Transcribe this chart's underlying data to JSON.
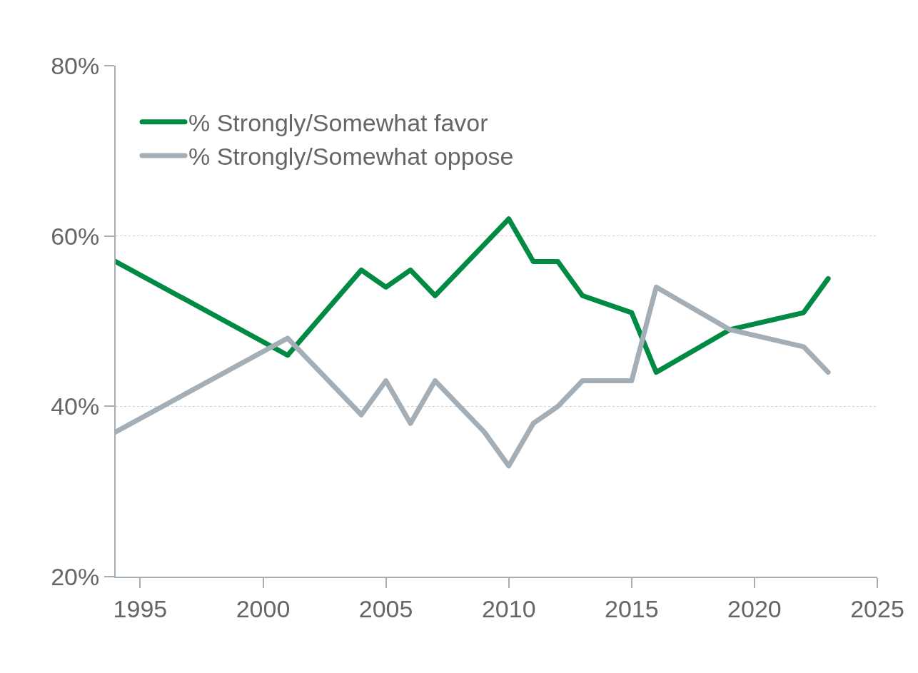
{
  "chart_data": {
    "type": "line",
    "x": [
      1994,
      2001,
      2004,
      2005,
      2006,
      2007,
      2009,
      2010,
      2011,
      2012,
      2013,
      2015,
      2016,
      2019,
      2022,
      2023
    ],
    "series": [
      {
        "name": "% Strongly/Somewhat favor",
        "color": "#008a43",
        "values": [
          57,
          46,
          56,
          54,
          56,
          53,
          59,
          62,
          57,
          57,
          53,
          51,
          44,
          49,
          51,
          55
        ]
      },
      {
        "name": "% Strongly/Somewhat oppose",
        "color": "#a3aeb6",
        "values": [
          37,
          48,
          39,
          43,
          38,
          43,
          37,
          33,
          38,
          40,
          43,
          43,
          54,
          49,
          47,
          44
        ]
      }
    ],
    "xlim": [
      1994,
      2025
    ],
    "xticks": [
      1995,
      2000,
      2005,
      2010,
      2015,
      2020,
      2025
    ],
    "ylim": [
      20,
      80
    ],
    "yticks": [
      {
        "value": 20,
        "label": "20%"
      },
      {
        "value": 40,
        "label": "40%"
      },
      {
        "value": 60,
        "label": "60%"
      },
      {
        "value": 80,
        "label": "80%"
      }
    ],
    "grid": "y",
    "legend": "top left",
    "line_style": "solid",
    "marker": "none"
  }
}
